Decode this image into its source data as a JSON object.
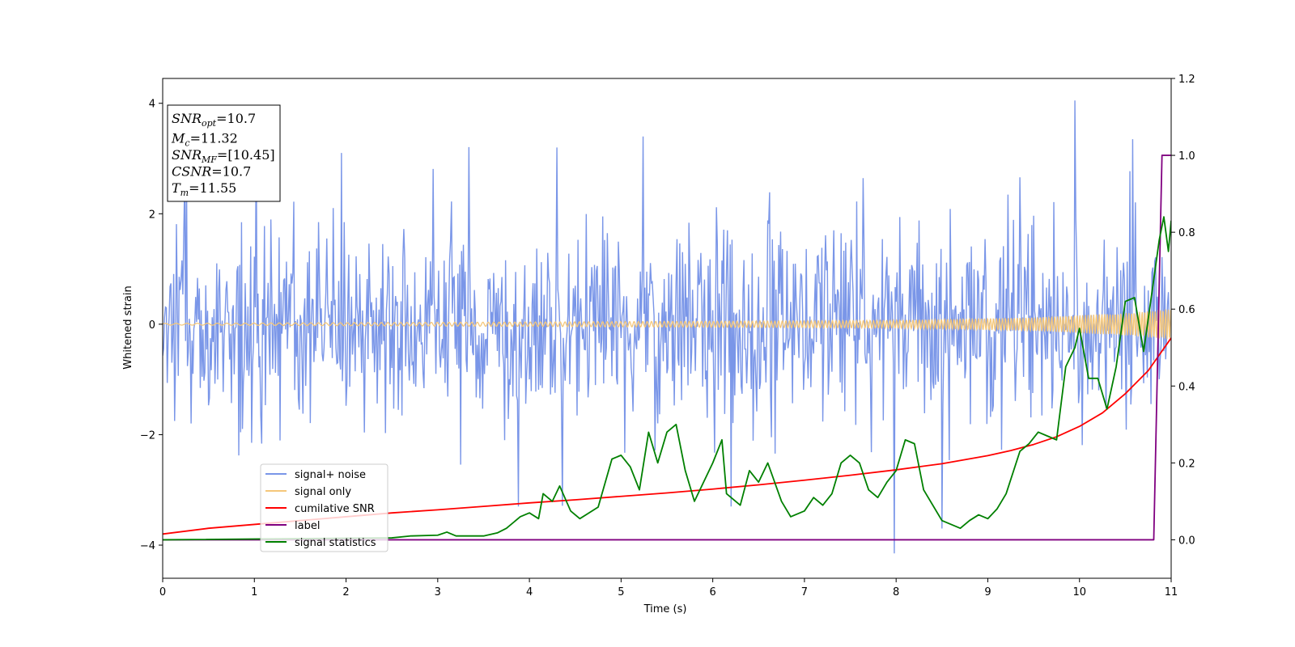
{
  "chart_data": {
    "type": "line",
    "xlabel": "Time (s)",
    "ylabel": "Whitened strain",
    "xlim": [
      0,
      11
    ],
    "ylim_left": [
      -4.6,
      4.45
    ],
    "ylim_right": [
      -0.1,
      1.2
    ],
    "x_ticks": [
      0,
      1,
      2,
      3,
      4,
      5,
      6,
      7,
      8,
      9,
      10,
      11
    ],
    "y_ticks_left": [
      -4,
      -2,
      0,
      2,
      4
    ],
    "y_ticks_right": [
      0.0,
      0.2,
      0.4,
      0.6,
      0.8,
      1.0,
      1.2
    ],
    "y_tick_labels_right": [
      "0.0",
      "0.2",
      "0.4",
      "0.6",
      "0.8",
      "1.0",
      "1.2"
    ],
    "legend_placement": "lower-left",
    "grid": false,
    "annotation": {
      "lines": [
        {
          "base": "SNR",
          "sub": "opt",
          "value": "=10.7"
        },
        {
          "base": "M",
          "sub": "c",
          "value": "=11.32"
        },
        {
          "base": "SNR",
          "sub": "MF",
          "value": "=[10.45]"
        },
        {
          "base": "CSNR",
          "sub": "",
          "value": "=10.7"
        },
        {
          "base": "T",
          "sub": "m",
          "value": "=11.55"
        }
      ]
    },
    "series": [
      {
        "name": "signal+ noise",
        "axis": "left",
        "color": "#7a96e8",
        "kind": "noise",
        "sample_rate_hz": 100,
        "std": 0.95,
        "peaks": [
          [
            9.95,
            4.05
          ],
          [
            7.98,
            -4.15
          ],
          [
            1.95,
            3.1
          ],
          [
            5.24,
            3.4
          ],
          [
            8.5,
            -3.7
          ],
          [
            4.3,
            3.2
          ],
          [
            1.02,
            3.5
          ],
          [
            10.58,
            3.35
          ],
          [
            3.88,
            -3.3
          ],
          [
            6.2,
            -3.3
          ]
        ]
      },
      {
        "name": "signal only",
        "axis": "left",
        "color": "#f5c77a",
        "kind": "chirp",
        "amplitude": [
          [
            0,
            0.015
          ],
          [
            4,
            0.04
          ],
          [
            8,
            0.07
          ],
          [
            9.5,
            0.12
          ],
          [
            10.5,
            0.2
          ],
          [
            11,
            0.28
          ]
        ]
      },
      {
        "name": "cumilative SNR",
        "axis": "right",
        "color": "#ff0000",
        "kind": "line",
        "x": [
          0,
          0.5,
          1,
          1.5,
          2,
          2.5,
          3,
          3.5,
          4,
          4.5,
          5,
          5.5,
          6,
          6.5,
          7,
          7.5,
          8,
          8.5,
          9,
          9.25,
          9.5,
          9.75,
          10,
          10.25,
          10.5,
          10.75,
          11
        ],
        "y": [
          0.015,
          0.03,
          0.04,
          0.05,
          0.06,
          0.07,
          0.078,
          0.087,
          0.096,
          0.104,
          0.113,
          0.122,
          0.132,
          0.143,
          0.155,
          0.168,
          0.182,
          0.198,
          0.219,
          0.232,
          0.248,
          0.268,
          0.295,
          0.33,
          0.38,
          0.44,
          0.525
        ]
      },
      {
        "name": "label",
        "axis": "right",
        "color": "#800080",
        "kind": "line",
        "x": [
          0,
          10.81,
          10.9,
          11
        ],
        "y": [
          0.0,
          0.0,
          1.0,
          1.0
        ]
      },
      {
        "name": "signal statistics",
        "axis": "right",
        "color": "#008000",
        "kind": "line",
        "x": [
          0,
          2.5,
          2.7,
          3.0,
          3.1,
          3.2,
          3.5,
          3.65,
          3.75,
          3.85,
          3.9,
          4.0,
          4.1,
          4.15,
          4.25,
          4.33,
          4.45,
          4.55,
          4.75,
          4.9,
          5.0,
          5.1,
          5.2,
          5.3,
          5.4,
          5.5,
          5.6,
          5.7,
          5.8,
          5.9,
          6.0,
          6.1,
          6.15,
          6.3,
          6.4,
          6.5,
          6.6,
          6.75,
          6.85,
          6.95,
          7.0,
          7.1,
          7.2,
          7.3,
          7.4,
          7.5,
          7.6,
          7.7,
          7.8,
          7.9,
          8.0,
          8.1,
          8.2,
          8.3,
          8.5,
          8.6,
          8.7,
          8.8,
          8.9,
          9.0,
          9.1,
          9.2,
          9.35,
          9.45,
          9.55,
          9.65,
          9.75,
          9.85,
          9.95,
          10.0,
          10.1,
          10.2,
          10.3,
          10.4,
          10.5,
          10.6,
          10.7,
          10.8,
          10.87,
          10.92,
          10.97,
          11.0
        ],
        "y": [
          0.0,
          0.005,
          0.01,
          0.012,
          0.02,
          0.01,
          0.01,
          0.018,
          0.03,
          0.05,
          0.06,
          0.07,
          0.055,
          0.12,
          0.1,
          0.14,
          0.075,
          0.055,
          0.085,
          0.21,
          0.22,
          0.19,
          0.13,
          0.28,
          0.2,
          0.28,
          0.3,
          0.18,
          0.1,
          0.15,
          0.2,
          0.26,
          0.12,
          0.09,
          0.18,
          0.15,
          0.2,
          0.1,
          0.06,
          0.07,
          0.075,
          0.11,
          0.09,
          0.12,
          0.2,
          0.22,
          0.2,
          0.13,
          0.11,
          0.15,
          0.18,
          0.26,
          0.25,
          0.13,
          0.05,
          0.04,
          0.03,
          0.05,
          0.065,
          0.055,
          0.08,
          0.12,
          0.23,
          0.25,
          0.28,
          0.27,
          0.26,
          0.45,
          0.5,
          0.55,
          0.42,
          0.42,
          0.34,
          0.45,
          0.62,
          0.63,
          0.49,
          0.66,
          0.78,
          0.84,
          0.75,
          0.83
        ]
      }
    ]
  }
}
